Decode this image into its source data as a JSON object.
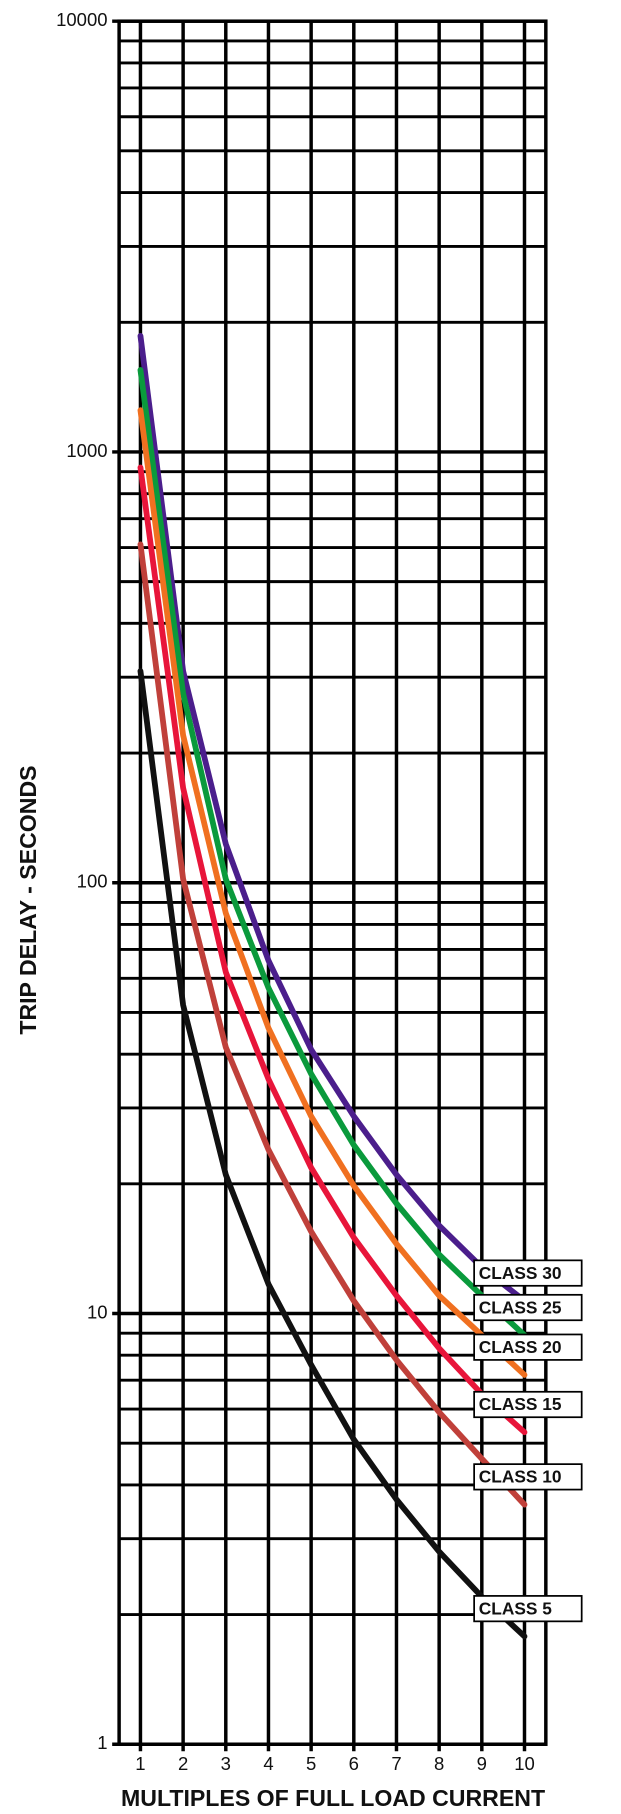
{
  "chart_data": {
    "type": "line",
    "x_label": "MULTIPLES OF FULL LOAD CURRENT",
    "y_label": "TRIP DELAY - SECONDS",
    "x": [
      1,
      2,
      3,
      4,
      5,
      6,
      7,
      8,
      9,
      10
    ],
    "xlim": [
      0.5,
      10.5
    ],
    "xticks": [
      1,
      2,
      3,
      4,
      5,
      6,
      7,
      8,
      9,
      10
    ],
    "ylim": [
      1,
      10000
    ],
    "yticks": [
      1,
      10,
      100,
      1000,
      10000
    ],
    "log_y": true,
    "grid": true,
    "minor_grid": true,
    "series": [
      {
        "name": "CLASS 30",
        "color": "#4b1e8c",
        "values": [
          1860,
          310,
          123,
          66,
          41,
          28.7,
          21,
          16,
          12.8,
          10.7
        ]
      },
      {
        "name": "CLASS 25",
        "color": "#0a9a3c",
        "values": [
          1550,
          275,
          102,
          57,
          36,
          24.6,
          18,
          13.7,
          11,
          8.9
        ]
      },
      {
        "name": "CLASS 20",
        "color": "#f07020",
        "values": [
          1250,
          220,
          85,
          46,
          28.7,
          19.8,
          14.5,
          11,
          8.9,
          7.2
        ]
      },
      {
        "name": "CLASS 15",
        "color": "#e8153a",
        "values": [
          920,
          166,
          62,
          35,
          21.8,
          15,
          11,
          8.3,
          6.5,
          5.3
        ]
      },
      {
        "name": "CLASS 10",
        "color": "#c0403a",
        "values": [
          610,
          102,
          41.5,
          24,
          15.5,
          10.7,
          7.8,
          5.9,
          4.6,
          3.6
        ]
      },
      {
        "name": "CLASS 5",
        "color": "#111111",
        "values": [
          310,
          52,
          21,
          11.7,
          7.6,
          5.1,
          3.7,
          2.8,
          2.2,
          1.78
        ]
      }
    ]
  }
}
